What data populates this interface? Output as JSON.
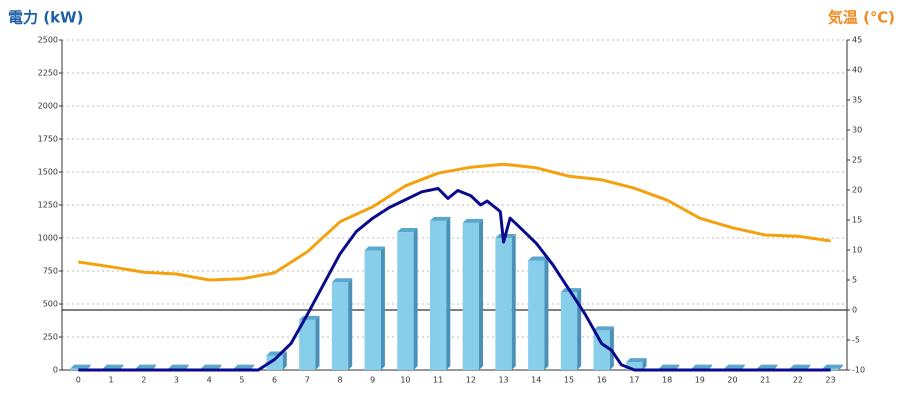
{
  "chart_data": {
    "type": "bar",
    "y_title": "電力 (kW)",
    "y2_title": "気温 (℃)",
    "y_title_color": "#1f5fa8",
    "y2_title_color": "#f08a1c",
    "categories": [
      "0",
      "1",
      "2",
      "3",
      "4",
      "5",
      "6",
      "7",
      "8",
      "9",
      "10",
      "11",
      "12",
      "13",
      "14",
      "15",
      "16",
      "17",
      "18",
      "19",
      "20",
      "21",
      "22",
      "23"
    ],
    "xlim": [
      -0.5,
      23.5
    ],
    "ylim": [
      0,
      2500
    ],
    "yticks": [
      0,
      250,
      500,
      750,
      1000,
      1250,
      1500,
      1750,
      2000,
      2250,
      2500
    ],
    "y2lim": [
      -10,
      45
    ],
    "y2ticks": [
      -10,
      -5,
      0,
      5,
      10,
      15,
      20,
      25,
      30,
      35,
      40,
      45
    ],
    "grid": true,
    "series": [
      {
        "type": "bar",
        "color": "#87ceeb",
        "values": [
          10,
          10,
          10,
          10,
          10,
          10,
          110,
          380,
          665,
          905,
          1045,
          1130,
          1115,
          1000,
          830,
          590,
          300,
          60,
          10,
          10,
          10,
          10,
          10,
          10
        ]
      },
      {
        "type": "line",
        "color": "#0a0a8c",
        "x": [
          0,
          5.5,
          6,
          6.5,
          7,
          7.5,
          8,
          8.5,
          9,
          9.5,
          10,
          10.5,
          11,
          11.3,
          11.6,
          12,
          12.3,
          12.5,
          12.9,
          13,
          13.2,
          13.5,
          14,
          14.5,
          15,
          15.5,
          16,
          16.3,
          16.6,
          17,
          23
        ],
        "values": [
          0,
          0,
          80,
          200,
          420,
          650,
          880,
          1050,
          1150,
          1230,
          1290,
          1350,
          1375,
          1300,
          1360,
          1320,
          1250,
          1280,
          1200,
          970,
          1150,
          1080,
          960,
          800,
          610,
          420,
          200,
          150,
          40,
          0,
          0
        ]
      },
      {
        "type": "line",
        "axis": "y2",
        "color": "#f5a10e",
        "values": [
          8.0,
          7.2,
          6.3,
          6.0,
          5.0,
          5.2,
          6.2,
          9.7,
          14.7,
          17.2,
          20.7,
          22.8,
          23.8,
          24.3,
          23.7,
          22.3,
          21.7,
          20.3,
          18.3,
          15.3,
          13.7,
          12.5,
          12.3,
          11.5
        ]
      }
    ]
  }
}
